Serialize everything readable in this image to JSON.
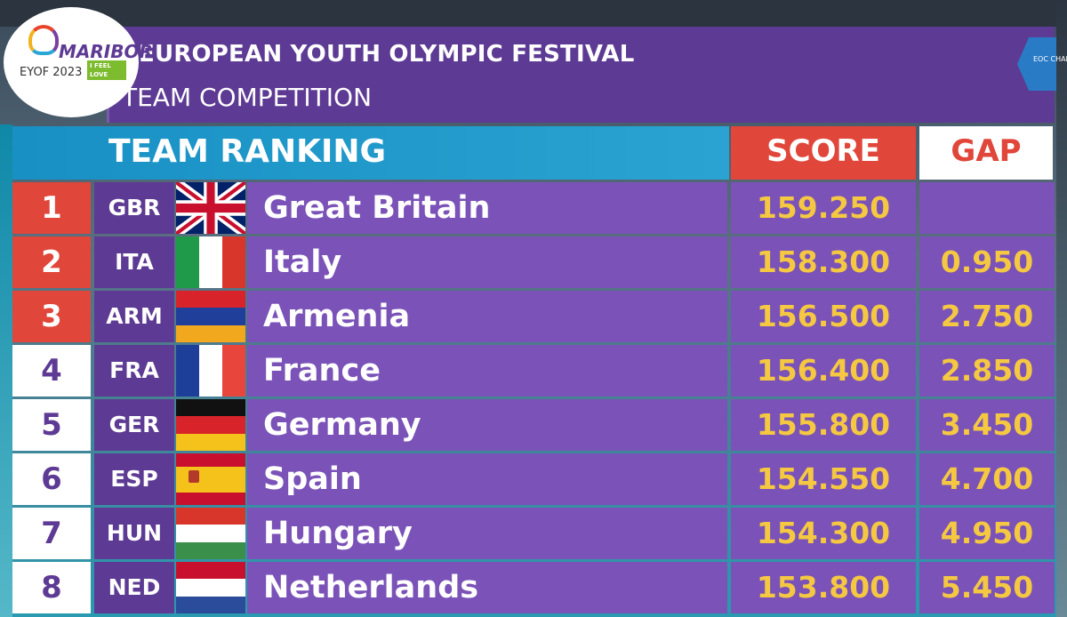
{
  "header": {
    "title": "EUROPEAN YOUTH OLYMPIC FESTIVAL",
    "subtitle": "TEAM COMPETITION"
  },
  "logo": {
    "word": "MARIBOR",
    "sub": "EYOF 2023",
    "tag": "I FEEL LOVE",
    "icon": "heart-logo-icon"
  },
  "channel": {
    "label": "EOC CHANNEL",
    "icon": "eoc-channel-icon"
  },
  "table": {
    "heading": "TEAM RANKING",
    "score_label": "SCORE",
    "gap_label": "GAP",
    "colors": {
      "medal": "#e0463a",
      "score_text": "#f5c842",
      "panel": "#5d3a93",
      "row": "#7a52b8"
    },
    "rows": [
      {
        "rank": "1",
        "code": "GBR",
        "name": "Great Britain",
        "score": "159.250",
        "gap": "",
        "flag": "gbr-flag-icon"
      },
      {
        "rank": "2",
        "code": "ITA",
        "name": "Italy",
        "score": "158.300",
        "gap": "0.950",
        "flag": "ita-flag-icon"
      },
      {
        "rank": "3",
        "code": "ARM",
        "name": "Armenia",
        "score": "156.500",
        "gap": "2.750",
        "flag": "arm-flag-icon"
      },
      {
        "rank": "4",
        "code": "FRA",
        "name": "France",
        "score": "156.400",
        "gap": "2.850",
        "flag": "fra-flag-icon"
      },
      {
        "rank": "5",
        "code": "GER",
        "name": "Germany",
        "score": "155.800",
        "gap": "3.450",
        "flag": "ger-flag-icon"
      },
      {
        "rank": "6",
        "code": "ESP",
        "name": "Spain",
        "score": "154.550",
        "gap": "4.700",
        "flag": "esp-flag-icon"
      },
      {
        "rank": "7",
        "code": "HUN",
        "name": "Hungary",
        "score": "154.300",
        "gap": "4.950",
        "flag": "hun-flag-icon"
      },
      {
        "rank": "8",
        "code": "NED",
        "name": "Netherlands",
        "score": "153.800",
        "gap": "5.450",
        "flag": "ned-flag-icon"
      }
    ]
  }
}
